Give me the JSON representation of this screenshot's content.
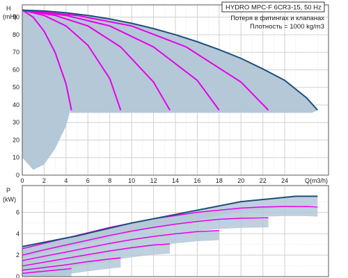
{
  "info": {
    "model": "HYDRO MPC-F 6CR3-15, 50 Hz",
    "note": "Потеря в фитингах и клапанах",
    "density": "Плотность = 1000 kg/m3"
  },
  "colors": {
    "envelope_line": "#1f4e79",
    "curve": "#e600e6",
    "fill": "#b4c8d8",
    "grid": "#d0d0d0",
    "frame": "#555555"
  },
  "chart_data": [
    {
      "type": "line",
      "name": "head-chart",
      "xlabel": "Q(m3/h)",
      "ylabel_lines": [
        "H",
        "(mH)"
      ],
      "xlim": [
        0,
        28
      ],
      "ylim": [
        0,
        97
      ],
      "x_ticks": [
        0,
        2,
        4,
        6,
        8,
        10,
        12,
        14,
        16,
        18,
        20,
        22,
        24
      ],
      "y_ticks": [
        0,
        10,
        20,
        30,
        40,
        50,
        60,
        70,
        80,
        90
      ],
      "grid": true,
      "envelope": {
        "x": [
          0,
          2,
          4,
          6,
          8,
          10,
          12,
          14,
          16,
          18,
          20,
          22,
          24,
          26,
          27
        ],
        "y": [
          94,
          93.5,
          92.5,
          91,
          89,
          86.5,
          83.5,
          80,
          76,
          71.5,
          66.5,
          60.5,
          54,
          44,
          37
        ]
      },
      "npsh_lower_bound": {
        "x": [
          0,
          1,
          2,
          3,
          4,
          4.4
        ],
        "y": [
          10,
          3,
          6,
          15,
          28,
          37
        ]
      },
      "series": [
        {
          "x": [
            0,
            1,
            2,
            3,
            4,
            4.5
          ],
          "y": [
            94,
            90,
            82,
            70,
            52,
            37
          ]
        },
        {
          "x": [
            0,
            2,
            4,
            6,
            8,
            9
          ],
          "y": [
            94,
            91,
            85,
            74,
            55,
            37
          ]
        },
        {
          "x": [
            0,
            3,
            6,
            9,
            12,
            13.5
          ],
          "y": [
            94,
            91,
            85,
            73,
            53,
            37
          ]
        },
        {
          "x": [
            0,
            4,
            8,
            12,
            16,
            18
          ],
          "y": [
            94,
            91,
            85,
            73,
            54,
            37
          ]
        },
        {
          "x": [
            0,
            5,
            10,
            15,
            20,
            22.5
          ],
          "y": [
            94,
            91,
            85,
            73,
            53,
            37
          ]
        }
      ]
    },
    {
      "type": "line",
      "name": "power-chart",
      "xlabel": "",
      "ylabel_lines": [
        "P",
        "(kW)"
      ],
      "xlim": [
        0,
        28
      ],
      "ylim": [
        0,
        8.5
      ],
      "y_ticks": [
        0,
        2,
        4,
        6
      ],
      "grid": true,
      "envelope": {
        "x": [
          0,
          5,
          10,
          15,
          20,
          25,
          27
        ],
        "y": [
          2.8,
          3.8,
          5.0,
          6.0,
          7.0,
          7.5,
          7.5
        ]
      },
      "series": [
        {
          "x": [
            0,
            2,
            4,
            6,
            8,
            10,
            12,
            14,
            16,
            18,
            20,
            22,
            24,
            26,
            27
          ],
          "y": [
            2.6,
            3.1,
            3.6,
            4.1,
            4.6,
            5.0,
            5.4,
            5.7,
            6.0,
            6.2,
            6.4,
            6.5,
            6.55,
            6.55,
            6.5
          ]
        },
        {
          "x": [
            0,
            2,
            4,
            6,
            8,
            10,
            12,
            14,
            16,
            18,
            20,
            22.5
          ],
          "y": [
            2.0,
            2.5,
            2.95,
            3.4,
            3.85,
            4.25,
            4.6,
            4.9,
            5.15,
            5.35,
            5.45,
            5.5
          ]
        },
        {
          "x": [
            0,
            2,
            4,
            6,
            8,
            10,
            12,
            14,
            16,
            18
          ],
          "y": [
            1.5,
            1.9,
            2.3,
            2.7,
            3.1,
            3.45,
            3.75,
            4.0,
            4.2,
            4.3
          ]
        },
        {
          "x": [
            0,
            2,
            4,
            6,
            8,
            10,
            12,
            13.5
          ],
          "y": [
            1.0,
            1.35,
            1.7,
            2.05,
            2.4,
            2.7,
            2.95,
            3.05
          ]
        },
        {
          "x": [
            0,
            2,
            4,
            6,
            8,
            9
          ],
          "y": [
            0.6,
            0.85,
            1.1,
            1.4,
            1.65,
            1.75
          ]
        },
        {
          "x": [
            0,
            1,
            2,
            3,
            4,
            4.5
          ],
          "y": [
            0.3,
            0.4,
            0.5,
            0.6,
            0.7,
            0.75
          ]
        }
      ]
    }
  ]
}
